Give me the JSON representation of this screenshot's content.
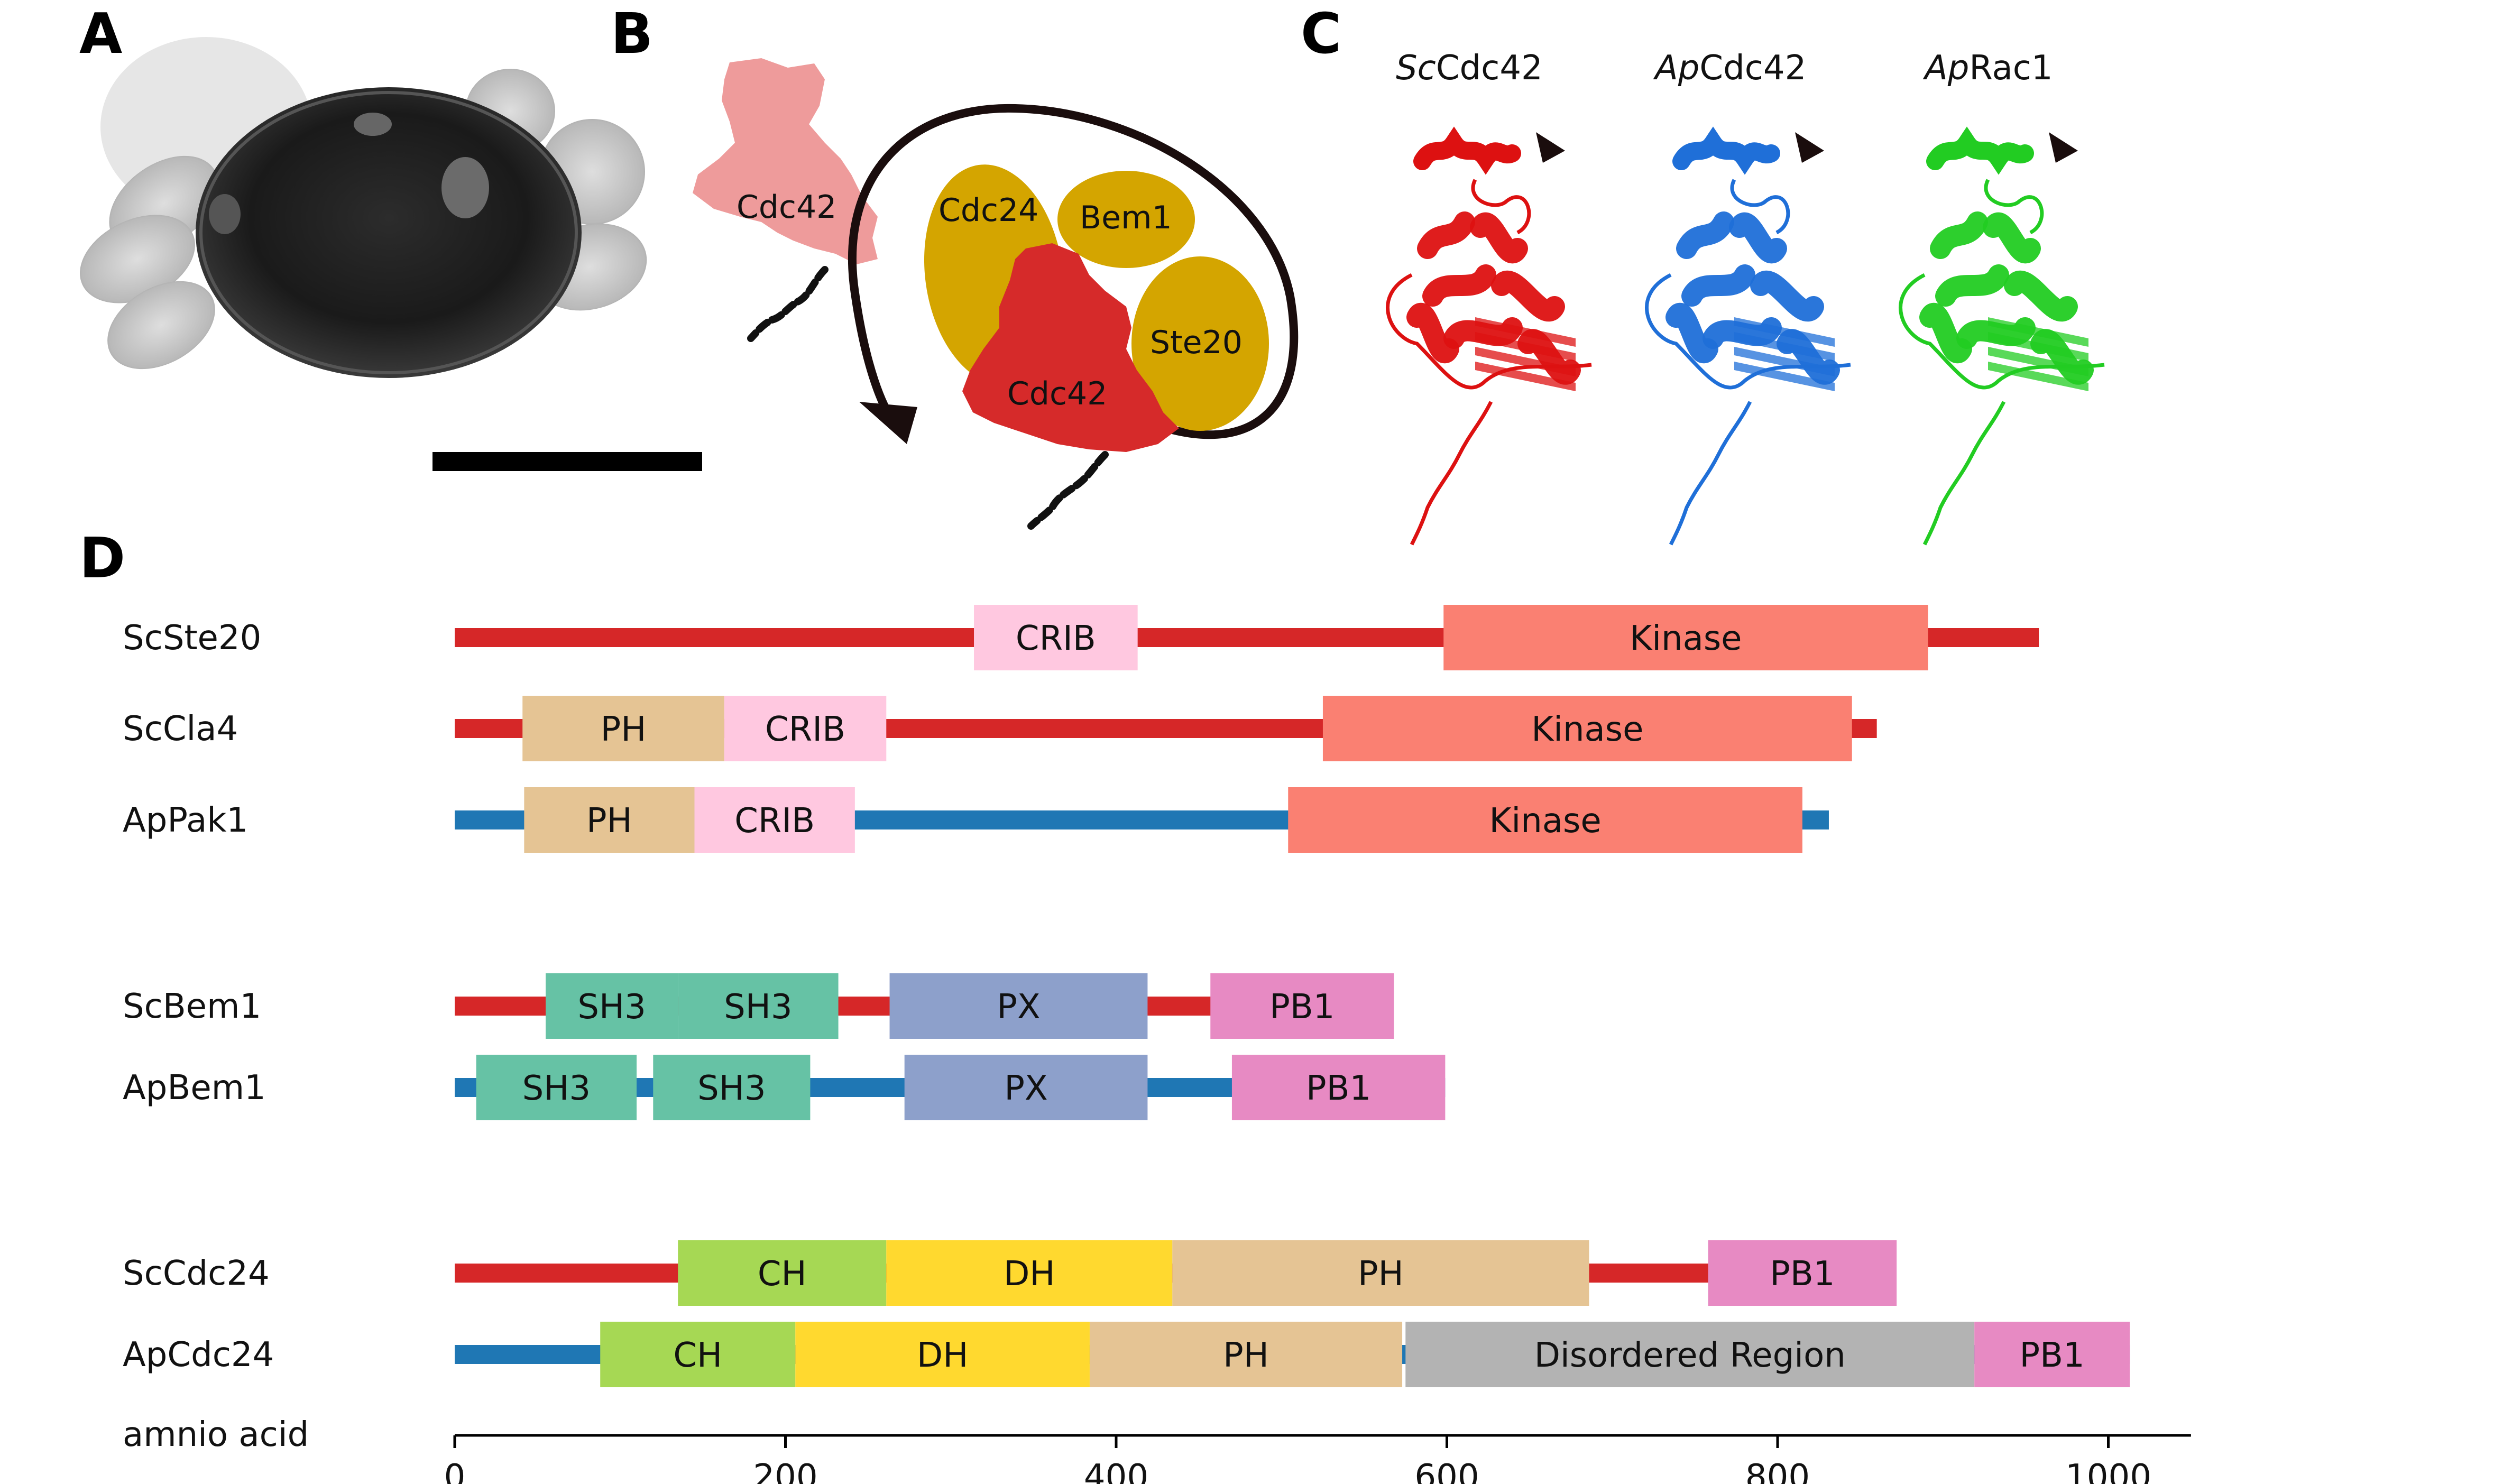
{
  "panels": {
    "a": {
      "label": "A"
    },
    "b": {
      "label": "B",
      "labels": [
        "Cdc42",
        "Cdc24",
        "Bem1",
        "Ste20",
        "Cdc42"
      ]
    },
    "c": {
      "label": "C",
      "structures": [
        {
          "prefix": "Sc",
          "name": "Cdc42",
          "color": "#dd1111"
        },
        {
          "prefix": "Ap",
          "name": "Cdc42",
          "color": "#1f6fd8"
        },
        {
          "prefix": "Ap",
          "name": "Rac1",
          "color": "#22cc22"
        }
      ]
    },
    "d": {
      "label": "D"
    }
  },
  "chart_data": {
    "type": "domain-architecture",
    "xlabel": "amnio acid",
    "xlim": [
      0,
      1050
    ],
    "xticks": [
      0,
      200,
      400,
      600,
      800,
      1000
    ],
    "species_colors": {
      "Sc": "#d62728",
      "Ap": "#1f77b4"
    },
    "domain_colors": {
      "CRIB": "#ffc8e0",
      "Kinase": "#fa8072",
      "PH": "#e5c494",
      "SH3": "#66c2a5",
      "PX": "#8da0cb",
      "PB1": "#e78ac3",
      "CH": "#a6d854",
      "DH": "#ffd92f",
      "Disordered Region": "#b3b3b3"
    },
    "proteins": [
      {
        "name": "ScSte20",
        "species": "Sc",
        "length": 958,
        "domains": [
          {
            "name": "CRIB",
            "start": 314,
            "end": 413
          },
          {
            "name": "Kinase",
            "start": 598,
            "end": 891
          }
        ]
      },
      {
        "name": "ScCla4",
        "species": "Sc",
        "length": 860,
        "domains": [
          {
            "name": "PH",
            "start": 41,
            "end": 163
          },
          {
            "name": "CRIB",
            "start": 163,
            "end": 261
          },
          {
            "name": "Kinase",
            "start": 525,
            "end": 845
          }
        ]
      },
      {
        "name": "ApPak1",
        "species": "Ap",
        "length": 831,
        "domains": [
          {
            "name": "PH",
            "start": 42,
            "end": 145
          },
          {
            "name": "CRIB",
            "start": 145,
            "end": 242
          },
          {
            "name": "Kinase",
            "start": 504,
            "end": 815
          }
        ]
      },
      {
        "name": "ScBem1",
        "species": "Sc",
        "length": 566,
        "domains": [
          {
            "name": "SH3",
            "start": 55,
            "end": 135
          },
          {
            "name": "SH3",
            "start": 135,
            "end": 232
          },
          {
            "name": "PX",
            "start": 263,
            "end": 419
          },
          {
            "name": "PB1",
            "start": 457,
            "end": 568
          }
        ]
      },
      {
        "name": "ApBem1",
        "species": "Ap",
        "length": 599,
        "domains": [
          {
            "name": "SH3",
            "start": 13,
            "end": 110
          },
          {
            "name": "SH3",
            "start": 120,
            "end": 215
          },
          {
            "name": "PX",
            "start": 272,
            "end": 419
          },
          {
            "name": "PB1",
            "start": 470,
            "end": 599
          }
        ]
      },
      {
        "name": "ScCdc24",
        "species": "Sc",
        "length": 854,
        "domains": [
          {
            "name": "CH",
            "start": 135,
            "end": 261
          },
          {
            "name": "DH",
            "start": 261,
            "end": 434
          },
          {
            "name": "PH",
            "start": 434,
            "end": 686
          },
          {
            "name": "PB1",
            "start": 758,
            "end": 872
          }
        ]
      },
      {
        "name": "ApCdc24",
        "species": "Ap",
        "length": 1013,
        "domains": [
          {
            "name": "CH",
            "start": 88,
            "end": 206
          },
          {
            "name": "DH",
            "start": 206,
            "end": 384
          },
          {
            "name": "PH",
            "start": 384,
            "end": 573
          },
          {
            "name": "Disordered Region",
            "start": 575,
            "end": 919
          },
          {
            "name": "PB1",
            "start": 919,
            "end": 1013
          }
        ]
      }
    ]
  }
}
